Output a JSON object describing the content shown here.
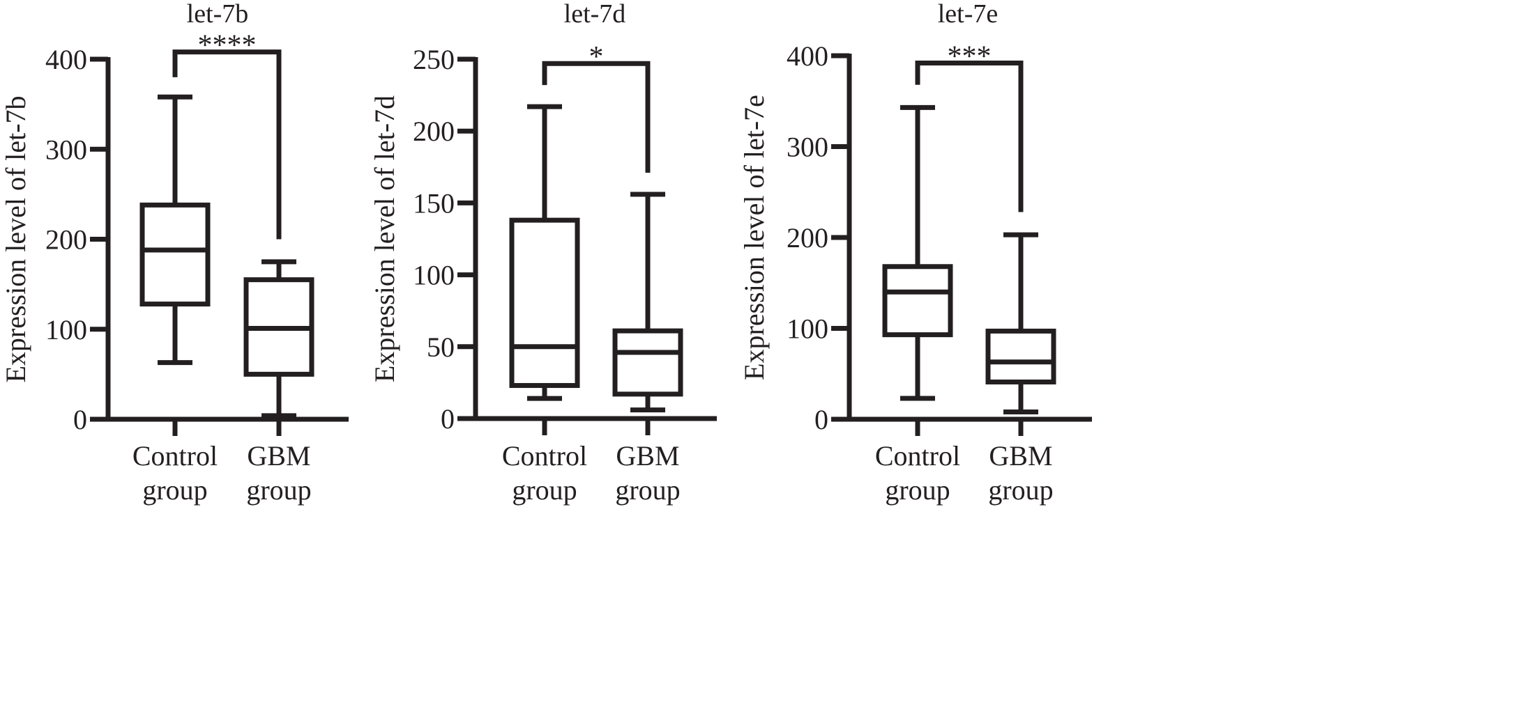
{
  "colors": {
    "ink": "#231f20",
    "background": "#ffffff"
  },
  "chart_data": [
    {
      "type": "box",
      "title": "let-7b",
      "ylabel": "Expression level of let-7b",
      "ylim": [
        0,
        400
      ],
      "yticks": [
        0,
        100,
        200,
        300,
        400
      ],
      "categories": [
        {
          "line1": "Control",
          "line2": "group"
        },
        {
          "line1": "GBM",
          "line2": "group"
        }
      ],
      "boxes": [
        {
          "min": 63,
          "q1": 128,
          "median": 188,
          "q3": 238,
          "max": 358
        },
        {
          "min": 4,
          "q1": 50,
          "median": 101,
          "q3": 155,
          "max": 175
        }
      ],
      "significance": {
        "label": "****",
        "left_end": 380,
        "right_end": 200,
        "level": 408
      },
      "grid": false
    },
    {
      "type": "box",
      "title": "let-7d",
      "ylabel": "Expression level of let-7d",
      "ylim": [
        0,
        250
      ],
      "yticks": [
        0,
        50,
        100,
        150,
        200,
        250
      ],
      "categories": [
        {
          "line1": "Control",
          "line2": "group"
        },
        {
          "line1": "GBM",
          "line2": "group"
        }
      ],
      "boxes": [
        {
          "min": 14,
          "q1": 23,
          "median": 50,
          "q3": 138,
          "max": 217
        },
        {
          "min": 6,
          "q1": 17,
          "median": 46,
          "q3": 61,
          "max": 156
        }
      ],
      "significance": {
        "label": "*",
        "left_end": 232,
        "right_end": 171,
        "level": 247
      },
      "grid": false
    },
    {
      "type": "box",
      "title": "let-7e",
      "ylabel": "Expression level of let-7e",
      "ylim": [
        0,
        400
      ],
      "yticks": [
        0,
        100,
        200,
        300,
        400
      ],
      "categories": [
        {
          "line1": "Control",
          "line2": "group"
        },
        {
          "line1": "GBM",
          "line2": "group"
        }
      ],
      "boxes": [
        {
          "min": 23,
          "q1": 93,
          "median": 140,
          "q3": 168,
          "max": 343
        },
        {
          "min": 8,
          "q1": 41,
          "median": 63,
          "q3": 97,
          "max": 203
        }
      ],
      "significance": {
        "label": "***",
        "left_end": 368,
        "right_end": 228,
        "level": 392
      },
      "grid": false
    }
  ]
}
